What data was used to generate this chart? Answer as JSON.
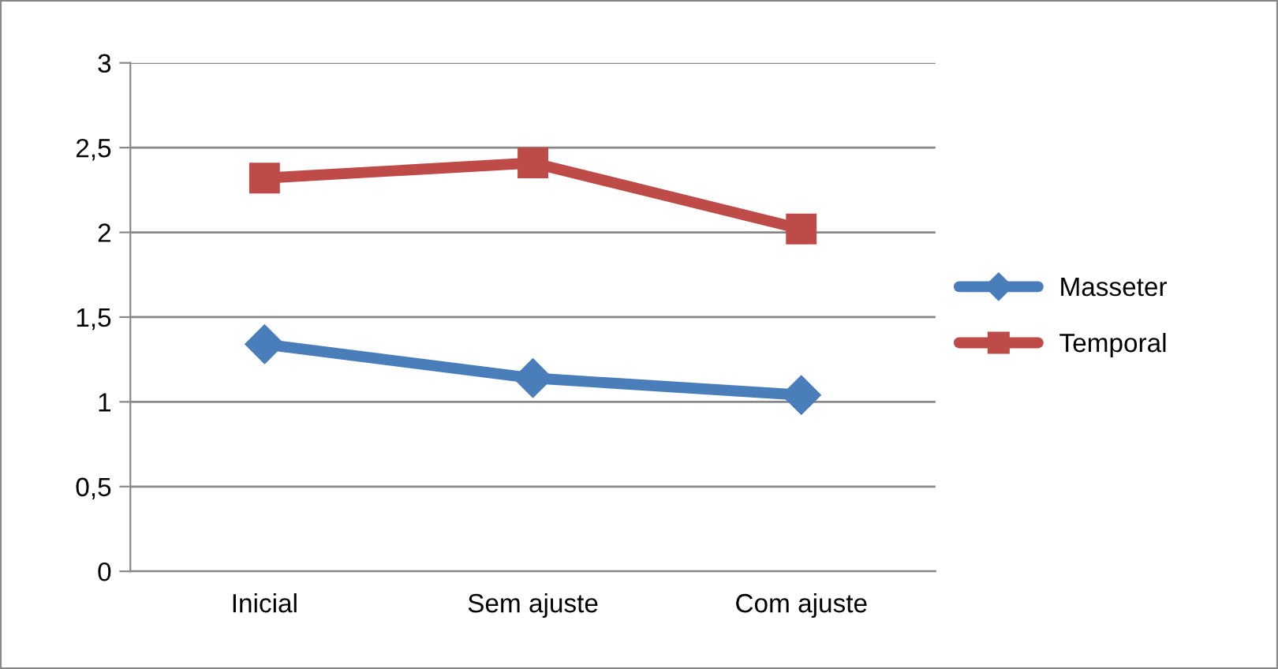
{
  "chart_data": {
    "type": "line",
    "categories": [
      "Inicial",
      "Sem ajuste",
      "Com ajuste"
    ],
    "series": [
      {
        "name": "Masseter",
        "color": "#4a7ebb",
        "marker": "diamond",
        "values": [
          1.34,
          1.14,
          1.04
        ]
      },
      {
        "name": "Temporal",
        "color": "#be4b48",
        "marker": "square",
        "values": [
          2.32,
          2.41,
          2.02
        ]
      }
    ],
    "ylim": [
      0,
      3
    ],
    "yticks": [
      0,
      {
        "value": 0.5,
        "label": "0,5"
      },
      1,
      {
        "value": 1.5,
        "label": "1,5"
      },
      2,
      {
        "value": 2.5,
        "label": "2,5"
      },
      3
    ],
    "grid": "y",
    "legend": "right"
  }
}
